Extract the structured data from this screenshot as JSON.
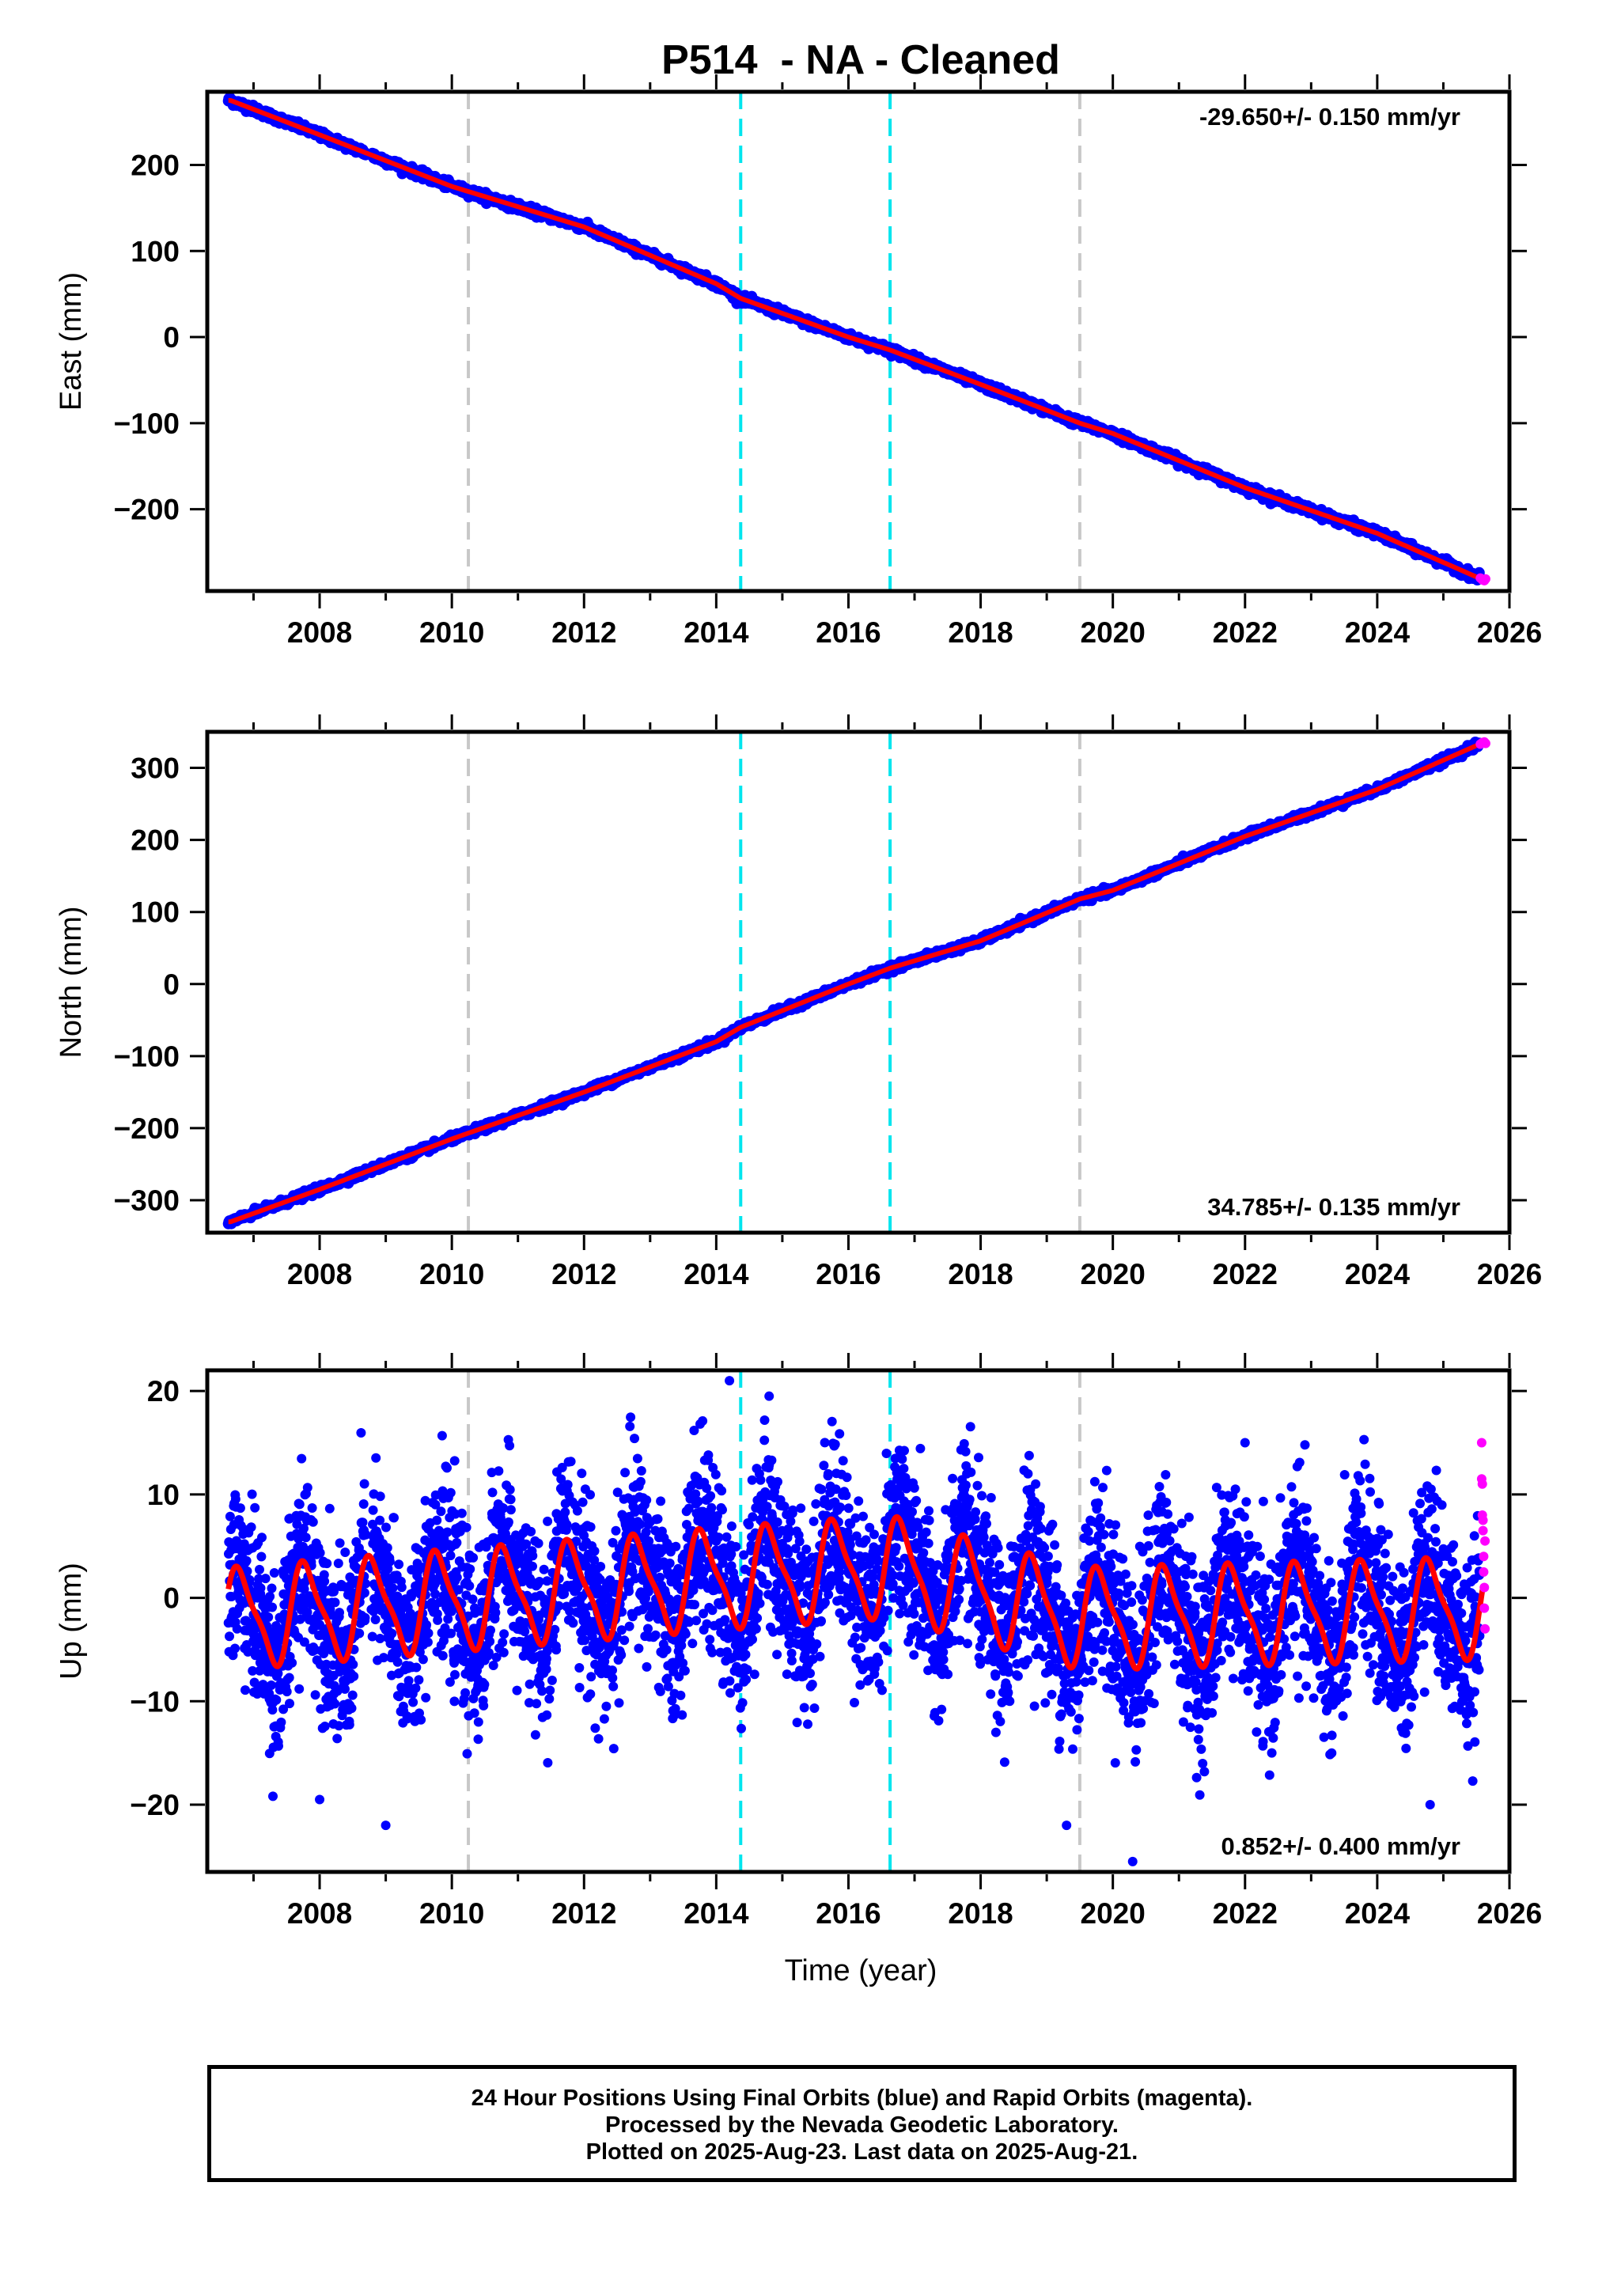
{
  "title": "P514  - NA - Cleaned",
  "xlabel": "Time (year)",
  "note_lines": [
    "24 Hour Positions Using Final Orbits (blue) and Rapid Orbits (magenta).",
    "Processed by the Nevada Geodetic Laboratory.",
    "Plotted on 2025-Aug-23. Last data on 2025-Aug-21."
  ],
  "colors": {
    "final_orbits": "#0000ff",
    "rapid_orbits": "#ff00ff",
    "model": "#ff0000",
    "equipment_change": "#c8c8c8",
    "earthquake": "#00e5ee"
  },
  "chart_data": [
    {
      "type": "scatter",
      "ylabel": "East (mm)",
      "rate_label": "-29.650+/- 0.150 mm/yr",
      "rate_placement": "top-right",
      "xlim": [
        2006.3,
        2026.0
      ],
      "ylim": [
        -295,
        285
      ],
      "xticks": [
        2008,
        2010,
        2012,
        2014,
        2016,
        2018,
        2020,
        2022,
        2024,
        2026
      ],
      "yticks": [
        -200,
        -100,
        0,
        100,
        200
      ],
      "grid": false,
      "gray_dashed_x": [
        2010.25,
        2019.5
      ],
      "cyan_dashed_x": [
        2014.37,
        2016.63
      ],
      "model_points": [
        [
          2006.65,
          275
        ],
        [
          2008.0,
          235
        ],
        [
          2010.0,
          175
        ],
        [
          2012.0,
          128
        ],
        [
          2014.0,
          62
        ],
        [
          2014.37,
          45
        ],
        [
          2016.0,
          0
        ],
        [
          2016.63,
          -15
        ],
        [
          2018.0,
          -55
        ],
        [
          2019.5,
          -100
        ],
        [
          2020.0,
          -112
        ],
        [
          2022.0,
          -175
        ],
        [
          2024.0,
          -228
        ],
        [
          2025.6,
          -282
        ]
      ],
      "rapid_points": [
        [
          2025.56,
          -280
        ],
        [
          2025.59,
          -282
        ],
        [
          2025.62,
          -283
        ],
        [
          2025.64,
          -281
        ]
      ]
    },
    {
      "type": "scatter",
      "ylabel": "North (mm)",
      "rate_label": "34.785+/- 0.135 mm/yr",
      "rate_placement": "bottom-right",
      "xlim": [
        2006.3,
        2026.0
      ],
      "ylim": [
        -345,
        350
      ],
      "xticks": [
        2008,
        2010,
        2012,
        2014,
        2016,
        2018,
        2020,
        2022,
        2024,
        2026
      ],
      "yticks": [
        -300,
        -200,
        -100,
        0,
        100,
        200,
        300
      ],
      "grid": false,
      "gray_dashed_x": [
        2010.25,
        2019.5
      ],
      "cyan_dashed_x": [
        2014.37,
        2016.63
      ],
      "model_points": [
        [
          2006.65,
          -330
        ],
        [
          2008.0,
          -285
        ],
        [
          2010.0,
          -215
        ],
        [
          2012.0,
          -150
        ],
        [
          2014.0,
          -80
        ],
        [
          2014.37,
          -60
        ],
        [
          2016.0,
          0
        ],
        [
          2016.63,
          22
        ],
        [
          2018.0,
          60
        ],
        [
          2019.5,
          118
        ],
        [
          2020.0,
          130
        ],
        [
          2022.0,
          205
        ],
        [
          2024.0,
          270
        ],
        [
          2025.6,
          335
        ]
      ],
      "rapid_points": [
        [
          2025.56,
          333
        ],
        [
          2025.59,
          335
        ],
        [
          2025.62,
          336
        ],
        [
          2025.64,
          334
        ]
      ]
    },
    {
      "type": "scatter",
      "ylabel": "Up (mm)",
      "rate_label": "0.852+/- 0.400 mm/yr",
      "rate_placement": "bottom-right",
      "xlim": [
        2006.3,
        2026.0
      ],
      "ylim": [
        -26.5,
        22
      ],
      "xticks": [
        2008,
        2010,
        2012,
        2014,
        2016,
        2018,
        2020,
        2022,
        2024,
        2026
      ],
      "yticks": [
        -20,
        -10,
        0,
        10,
        20
      ],
      "grid": false,
      "gray_dashed_x": [
        2010.25,
        2019.5
      ],
      "cyan_dashed_x": [
        2014.37,
        2016.63
      ],
      "model_trend": [
        [
          2006.65,
          -2
        ],
        [
          2014.37,
          2
        ],
        [
          2016.63,
          3
        ],
        [
          2019.5,
          -2
        ],
        [
          2025.6,
          -1
        ]
      ],
      "model_seasonal_amplitude_mm": 4.5,
      "rapid_points": [
        [
          2025.58,
          15
        ],
        [
          2025.58,
          11.5
        ],
        [
          2025.59,
          11
        ],
        [
          2025.59,
          8
        ],
        [
          2025.6,
          7.5
        ],
        [
          2025.6,
          6.5
        ],
        [
          2025.61,
          4
        ],
        [
          2025.61,
          2.5
        ],
        [
          2025.62,
          1
        ],
        [
          2025.62,
          -1
        ],
        [
          2025.63,
          -3
        ],
        [
          2025.63,
          5.5
        ]
      ],
      "outlier_points": [
        [
          2014.2,
          21
        ],
        [
          2014.8,
          19.5
        ],
        [
          2008.0,
          -19.5
        ],
        [
          2009.0,
          -22
        ],
        [
          2019.3,
          -22
        ],
        [
          2020.3,
          -25.5
        ],
        [
          2024.8,
          -20
        ],
        [
          2023.8,
          15.3
        ],
        [
          2022.0,
          15
        ]
      ]
    }
  ]
}
